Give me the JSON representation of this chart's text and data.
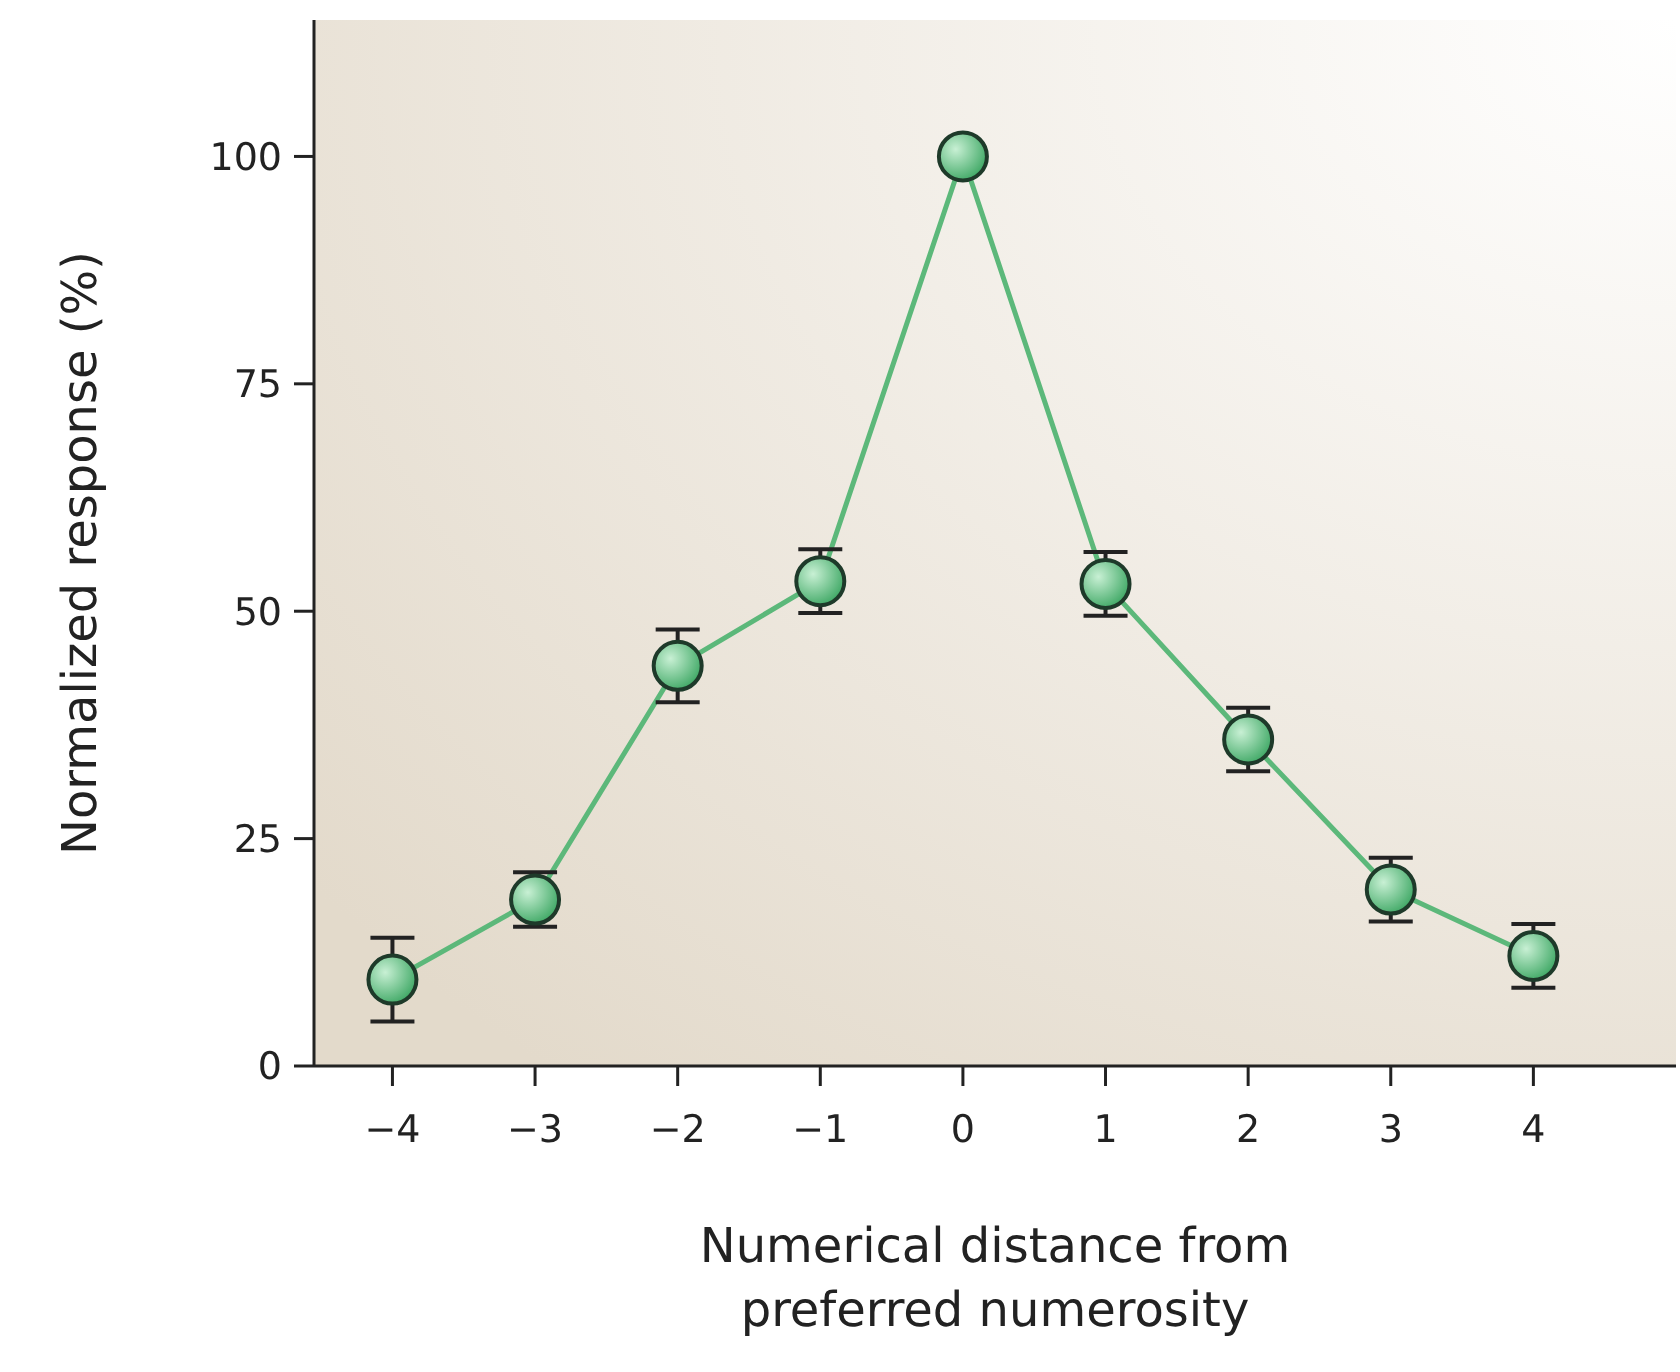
{
  "chart_data": {
    "type": "line",
    "xlabel": "Numerical distance from\npreferred numerosity",
    "ylabel": "Normalized response (%)",
    "x": [
      -4,
      -3,
      -2,
      -1,
      0,
      1,
      2,
      3,
      4
    ],
    "series": [
      {
        "color": "#5cb87a",
        "values": [
          9.5,
          18.3,
          44,
          53.3,
          100,
          53,
          35.9,
          19.4,
          12.1
        ],
        "errors": [
          4.6,
          3,
          4,
          3.5,
          null,
          3.5,
          3.5,
          3.5,
          3.5
        ]
      }
    ],
    "xlim": [
      -4.55,
      5.0
    ],
    "ylim": [
      0,
      115
    ],
    "xticks": [
      {
        "value": -4,
        "label": "−4"
      },
      {
        "value": -3,
        "label": "−3"
      },
      {
        "value": -2,
        "label": "−2"
      },
      {
        "value": -1,
        "label": "−1"
      },
      0,
      1,
      2,
      3,
      4
    ],
    "yticks": [
      0,
      25,
      50,
      75,
      100
    ],
    "marker": "circle",
    "line_style": "solid",
    "grid": false
  }
}
